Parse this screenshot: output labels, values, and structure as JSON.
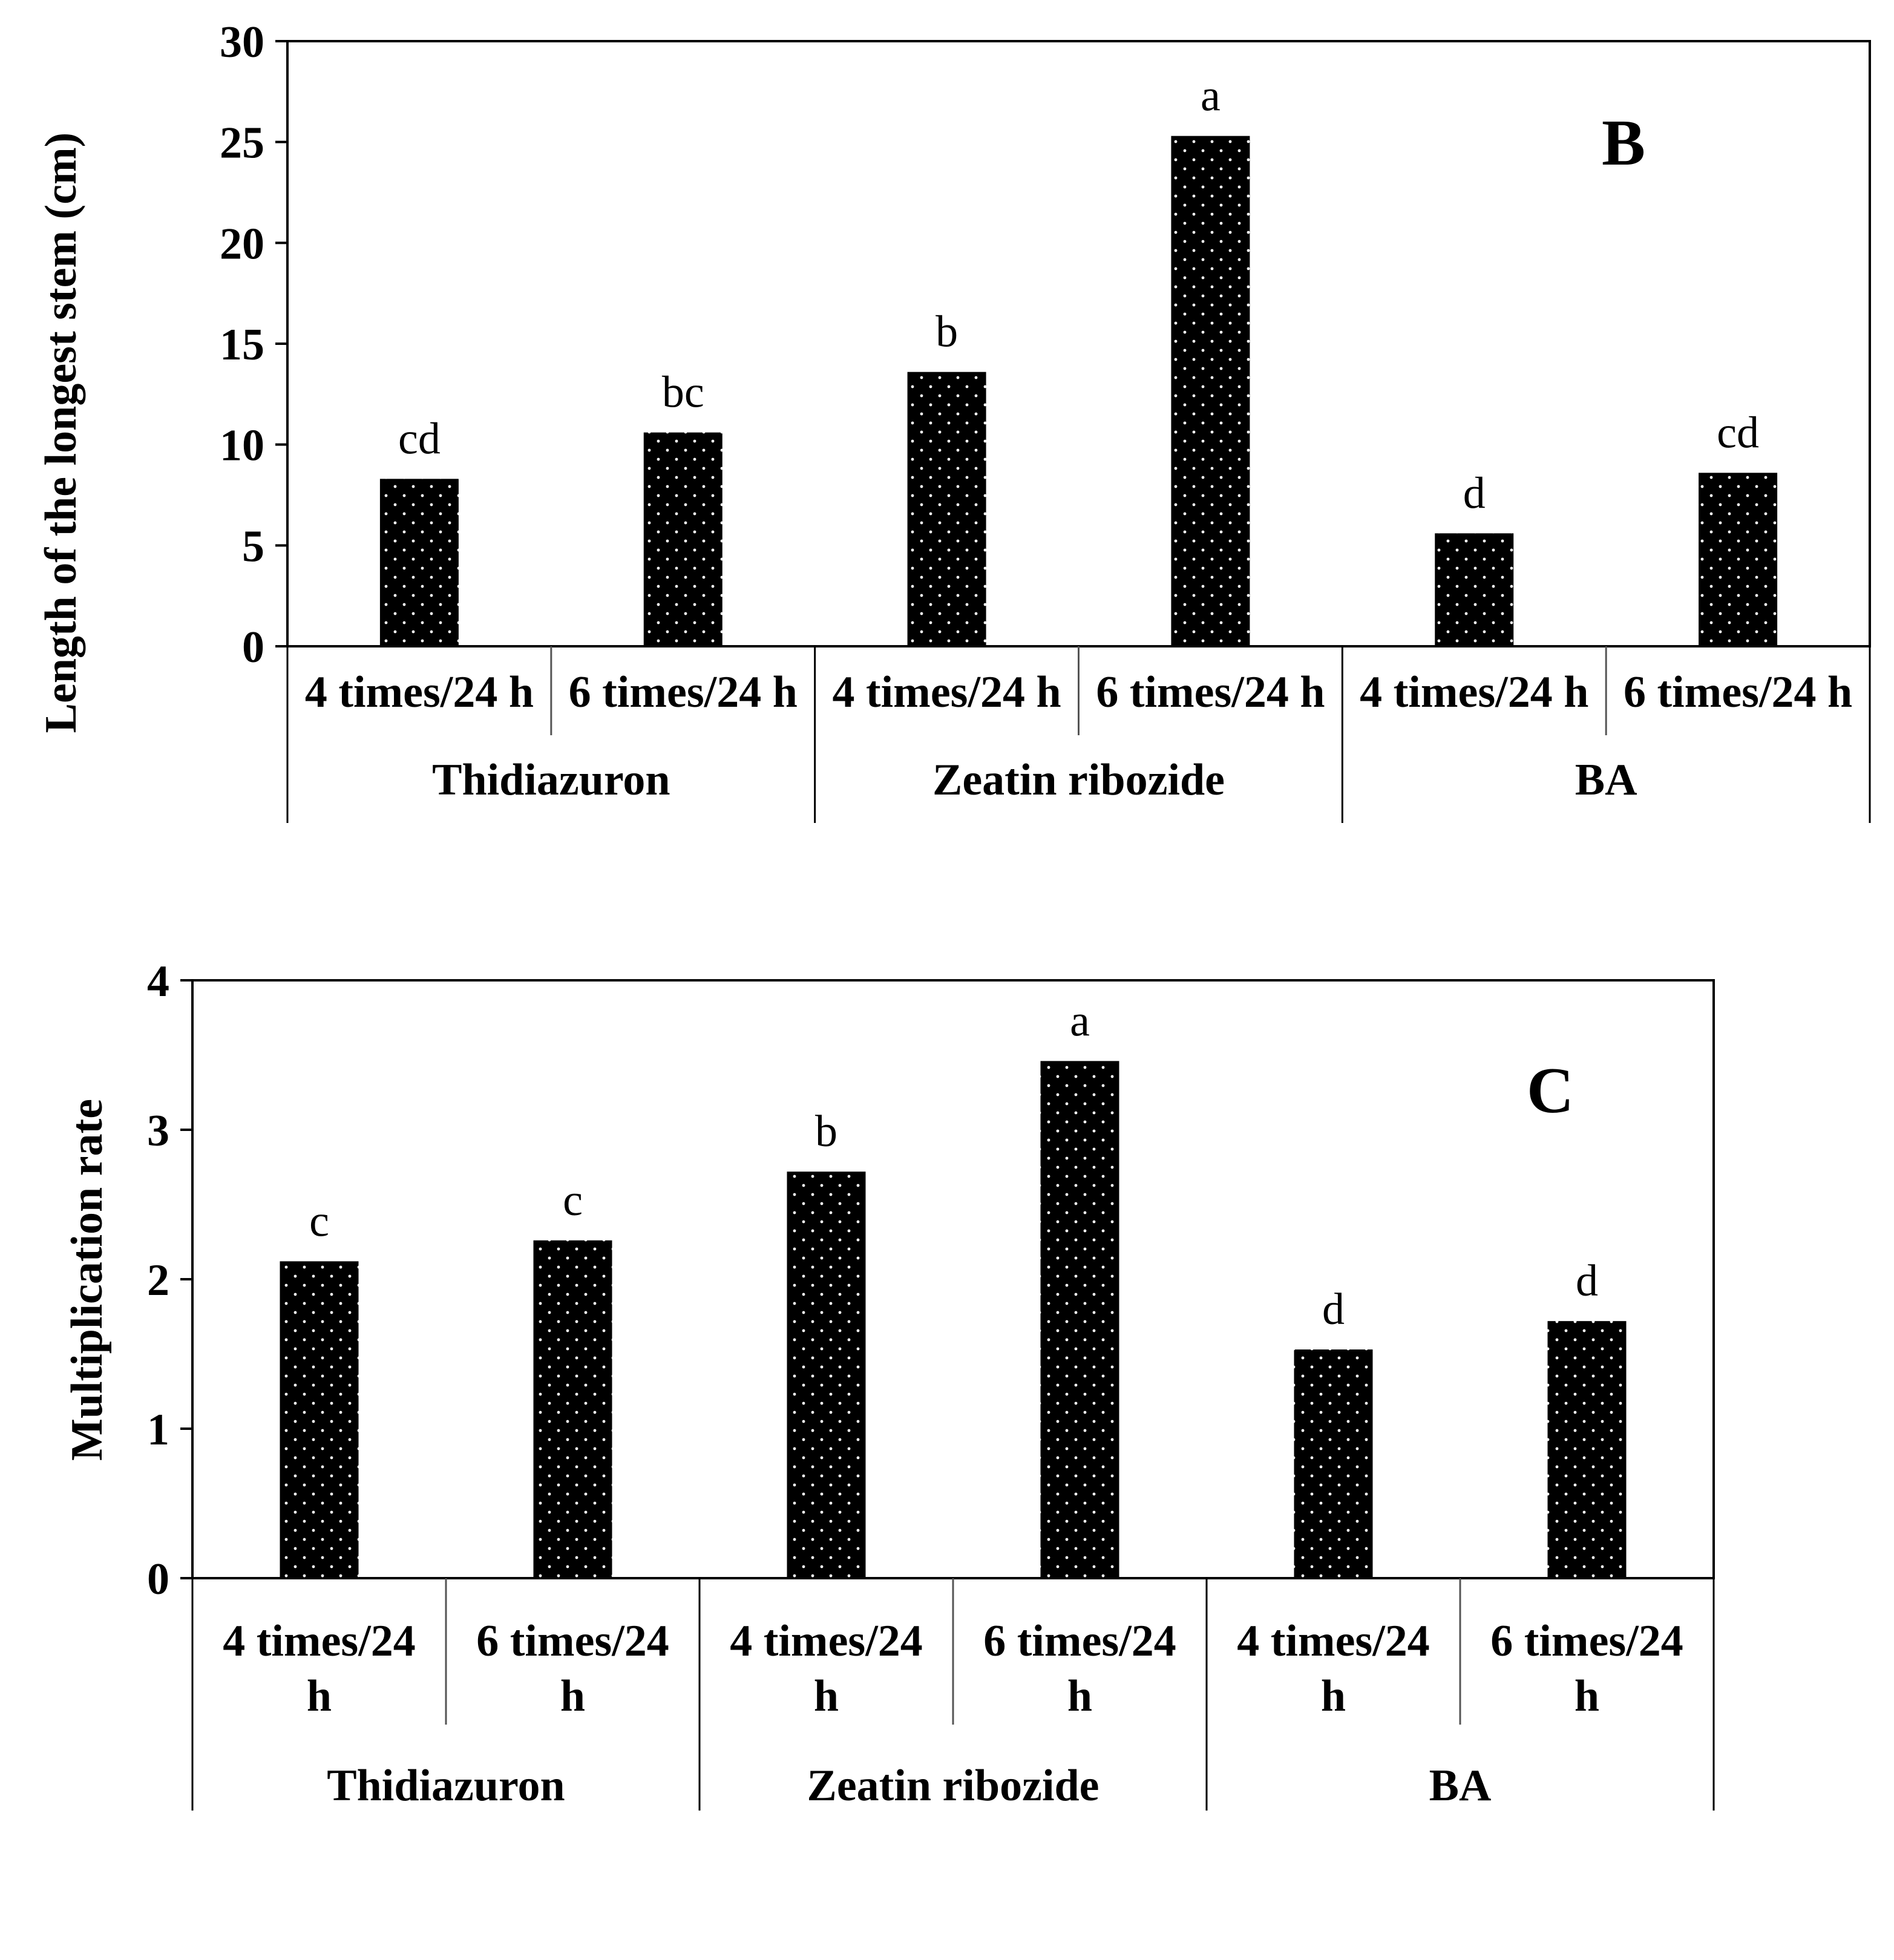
{
  "chart_data": [
    {
      "type": "bar",
      "panel": "B",
      "title": "",
      "xlabel": "",
      "ylabel": "Length of the longest stem (cm)",
      "ylim": [
        0,
        30
      ],
      "yticks": [
        0,
        5,
        10,
        15,
        20,
        25,
        30
      ],
      "grid": false,
      "groups": [
        "Thidiazuron",
        "Zeatin ribozide",
        "BA"
      ],
      "categories": [
        "4 times/24 h",
        "6 times/24 h",
        "4 times/24 h",
        "6 times/24 h",
        "4 times/24 h",
        "6 times/24 h"
      ],
      "values": [
        8.3,
        10.6,
        13.6,
        25.3,
        5.6,
        8.6
      ],
      "letters": [
        "cd",
        "bc",
        "b",
        "a",
        "d",
        "cd"
      ]
    },
    {
      "type": "bar",
      "panel": "C",
      "title": "",
      "xlabel": "",
      "ylabel": "Multiplication rate",
      "ylim": [
        0,
        4
      ],
      "yticks": [
        0,
        1,
        2,
        3,
        4
      ],
      "grid": false,
      "groups": [
        "Thidiazuron",
        "Zeatin ribozide",
        "BA"
      ],
      "categories": [
        [
          "4 times/24",
          "h"
        ],
        [
          "6 times/24",
          "h"
        ],
        [
          "4 times/24",
          "h"
        ],
        [
          "6 times/24",
          "h"
        ],
        [
          "4 times/24",
          "h"
        ],
        [
          "6 times/24",
          "h"
        ]
      ],
      "values": [
        2.12,
        2.26,
        2.72,
        3.46,
        1.53,
        1.72
      ],
      "letters": [
        "c",
        "c",
        "b",
        "a",
        "d",
        "d"
      ]
    }
  ]
}
